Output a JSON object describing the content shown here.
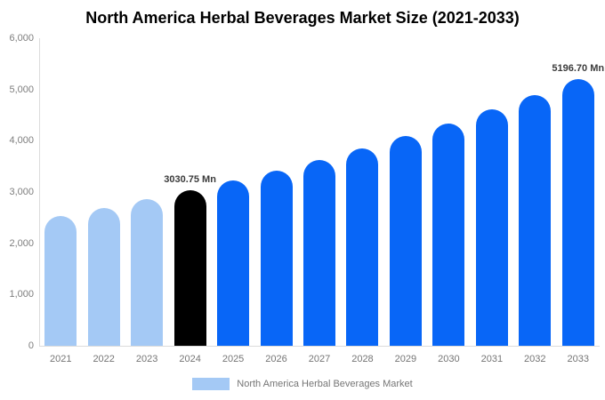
{
  "title": "North America Herbal Beverages Market Size (2021-2033)",
  "legend": {
    "label": "North America Herbal Beverages Market",
    "swatch_color": "#a4c9f5"
  },
  "colors": {
    "historical_bar": "#a4c9f5",
    "current_bar": "#000000",
    "forecast_bar": "#0866f7",
    "axis_line": "#dcdcdc",
    "tick_text": "#7d7d7d",
    "data_label_text": "#3b3b3b"
  },
  "chart_data": {
    "type": "bar",
    "title": "North America Herbal Beverages Market Size (2021-2033)",
    "xlabel": "",
    "ylabel": "",
    "ylim": [
      0,
      6000
    ],
    "ytick_step": 1000,
    "ytick_labels": [
      "0",
      "1,000",
      "2,000",
      "3,000",
      "4,000",
      "5,000",
      "6,000"
    ],
    "grid": false,
    "legend_position": "bottom",
    "categories": [
      "2021",
      "2022",
      "2023",
      "2024",
      "2025",
      "2026",
      "2027",
      "2028",
      "2029",
      "2030",
      "2031",
      "2032",
      "2033"
    ],
    "values": [
      2532,
      2688,
      2854,
      3030.75,
      3218,
      3416,
      3627,
      3851,
      4089,
      4341,
      4609,
      4893,
      5196.7
    ],
    "bar_styles": [
      "historical",
      "historical",
      "historical",
      "current",
      "forecast",
      "forecast",
      "forecast",
      "forecast",
      "forecast",
      "forecast",
      "forecast",
      "forecast",
      "forecast"
    ],
    "data_labels": [
      null,
      null,
      null,
      "3030.75 Mn",
      null,
      null,
      null,
      null,
      null,
      null,
      null,
      null,
      "5196.70 Mn"
    ]
  }
}
